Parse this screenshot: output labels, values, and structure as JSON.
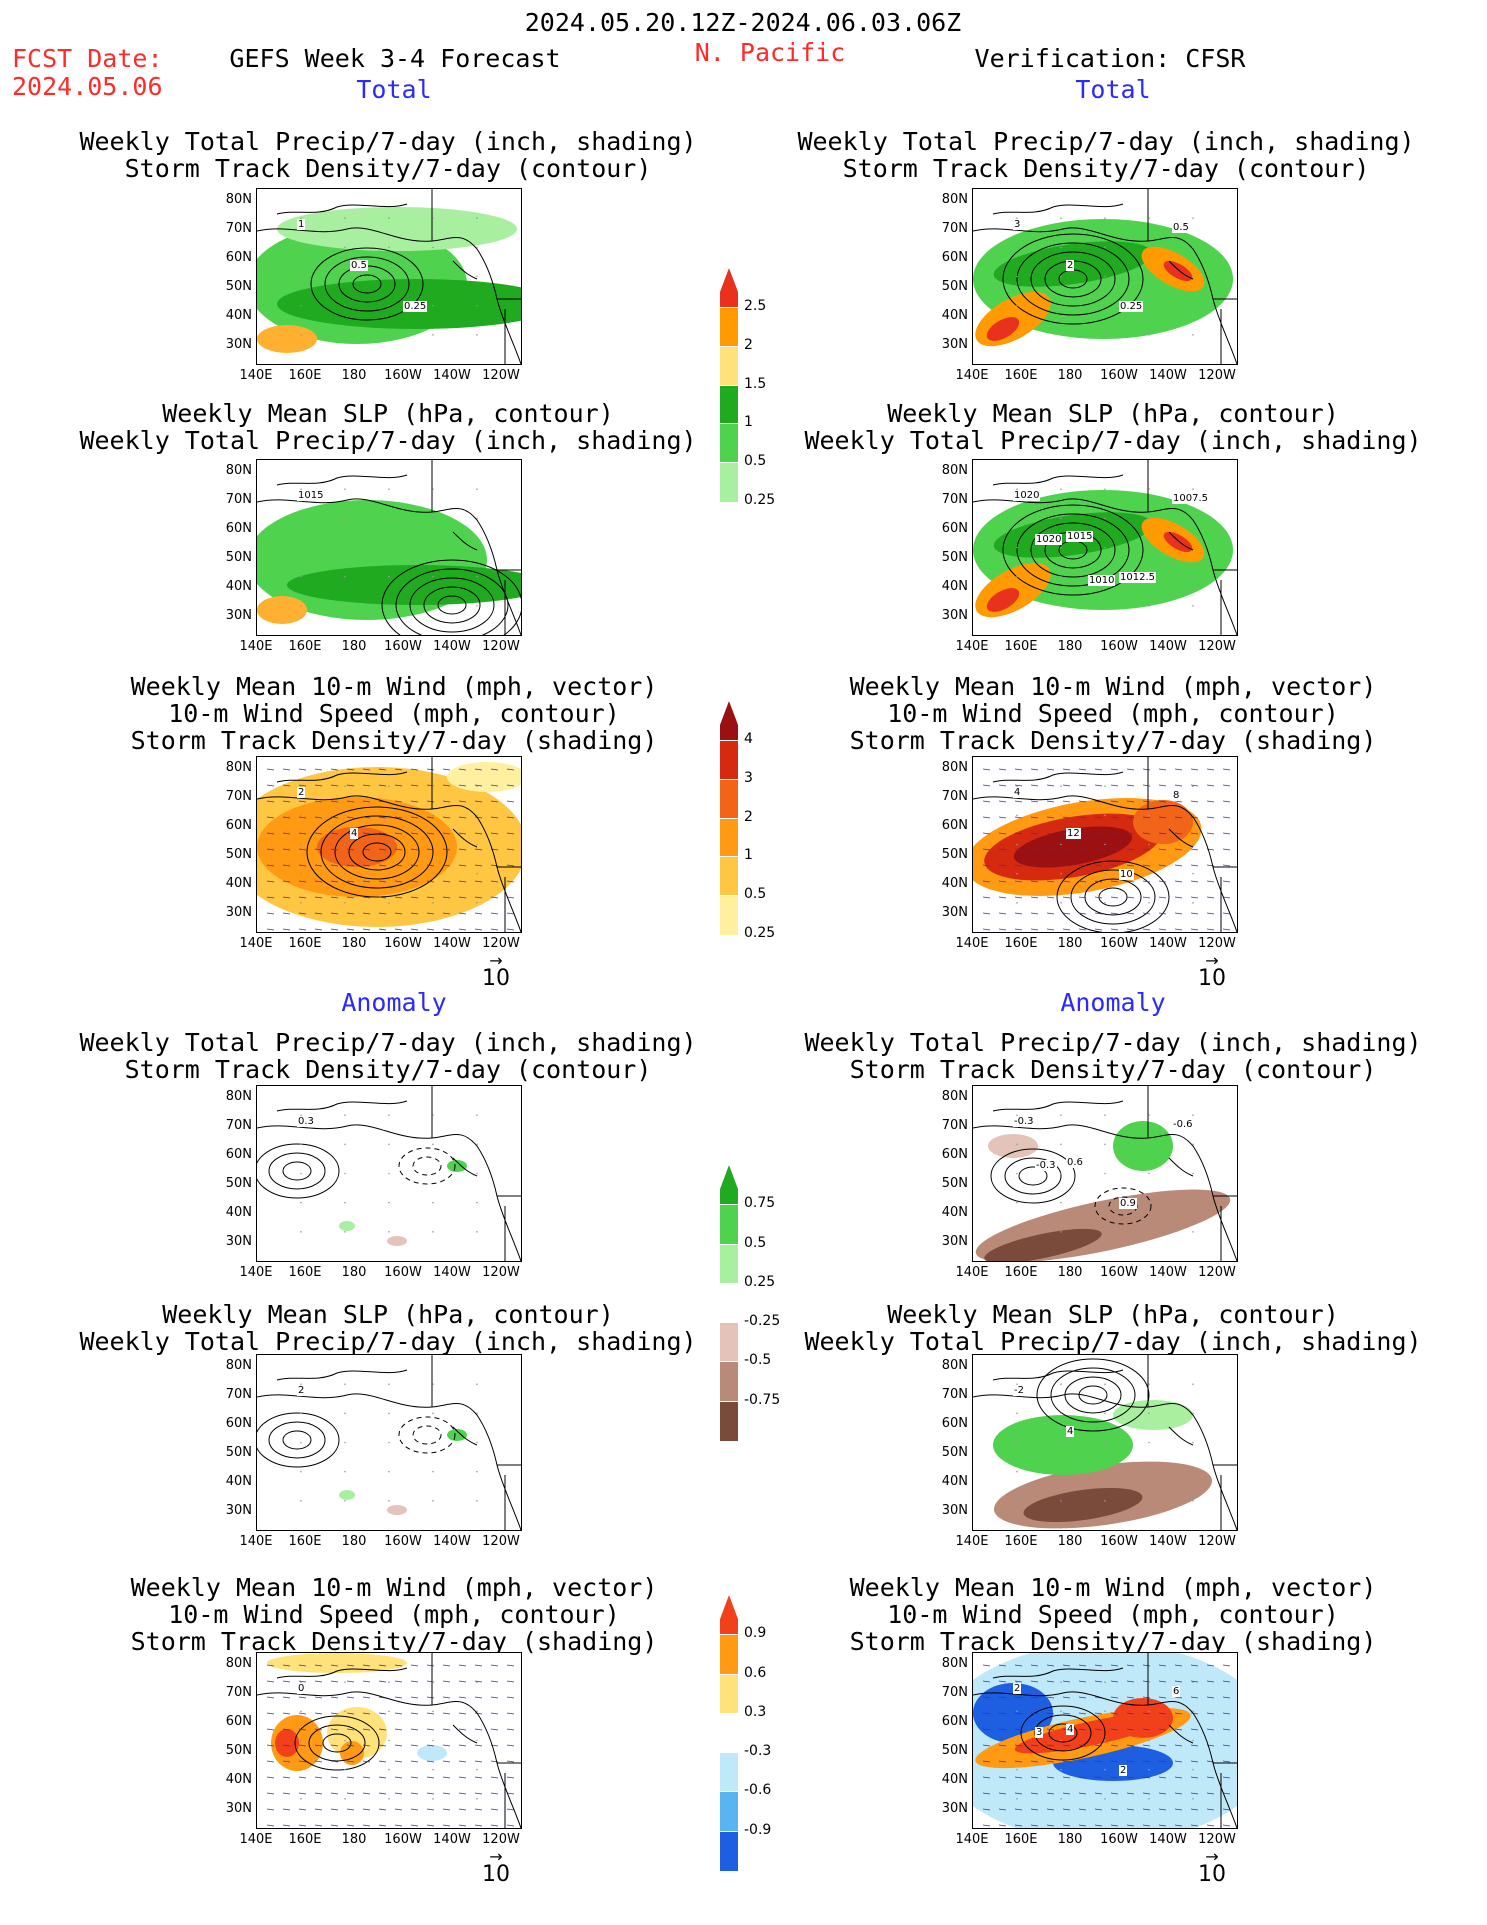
{
  "header": {
    "period": "2024.05.20.12Z-2024.06.03.06Z",
    "fcst_label": "FCST Date:",
    "fcst_date": "2024.05.06",
    "model": "GEFS Week 3-4 Forecast",
    "region": "N. Pacific",
    "verification": "Verification: CFSR"
  },
  "sections": {
    "total_left": "Total",
    "total_right": "Total",
    "anom_left": "Anomaly",
    "anom_right": "Anomaly"
  },
  "titles": {
    "precip_std": "Weekly Total Precip/7-day (inch, shading)\nStorm Track Density/7-day (contour)",
    "slp_precip": "Weekly Mean SLP (hPa, contour)\nWeekly Total Precip/7-day (inch, shading)",
    "wind": "Weekly Mean 10-m Wind (mph, vector)\n10-m Wind Speed (mph, contour)\nStorm Track Density/7-day (shading)"
  },
  "axes": {
    "lat_labels": [
      "80N",
      "70N",
      "60N",
      "50N",
      "40N",
      "30N"
    ],
    "lon_labels": [
      "140E",
      "160E",
      "180",
      "160W",
      "140W",
      "120W"
    ]
  },
  "vector_ref": "10",
  "colorbars": {
    "precip_total": {
      "labels": [
        "2.5",
        "2",
        "1.5",
        "1",
        "0.5",
        "0.25"
      ],
      "colors": [
        "#e8321e",
        "#ff9a00",
        "#ffe27a",
        "#1faa1f",
        "#4fd34f",
        "#a8f0a0"
      ]
    },
    "std_total": {
      "labels": [
        "4",
        "3",
        "2",
        "1",
        "0.5",
        "0.25"
      ],
      "colors": [
        "#9b1010",
        "#d62a10",
        "#f26418",
        "#ff9a12",
        "#ffc642",
        "#fff0a0"
      ]
    },
    "precip_anom": {
      "labels": [
        "0.75",
        "0.5",
        "0.25",
        "-0.25",
        "-0.5",
        "-0.75"
      ],
      "colors": [
        "#1faa1f",
        "#4fd34f",
        "#a8f0a0",
        "#ffffff",
        "#e4c4b8",
        "#b98a78",
        "#7a4a3a"
      ]
    },
    "std_anom": {
      "labels": [
        "0.9",
        "0.6",
        "0.3",
        "-0.3",
        "-0.6",
        "-0.9"
      ],
      "colors": [
        "#f2401a",
        "#ff9a12",
        "#ffe27a",
        "#ffffff",
        "#bfe8f8",
        "#5ab4f0",
        "#1e5ee0"
      ]
    }
  },
  "contour_labels": {
    "r1l": [
      "1",
      "0.5",
      "0.25"
    ],
    "r1r": [
      "3",
      "2",
      "0.25",
      "0.5"
    ],
    "r2l": [
      "1015"
    ],
    "r2r": [
      "1020",
      "1015",
      "1012.5",
      "1007.5",
      "1020",
      "1010"
    ],
    "r3l": [
      "2",
      "4"
    ],
    "r3r": [
      "4",
      "12",
      "10",
      "8"
    ],
    "r4l": [
      "0.3"
    ],
    "r4r": [
      "-0.3",
      "0.6",
      "0.9",
      "-0.6",
      "-0.3"
    ],
    "r5l": [
      "2"
    ],
    "r5r": [
      "-2",
      "4"
    ],
    "r6l": [
      "0"
    ],
    "r6r": [
      "2",
      "4",
      "2",
      "6",
      "3"
    ]
  }
}
